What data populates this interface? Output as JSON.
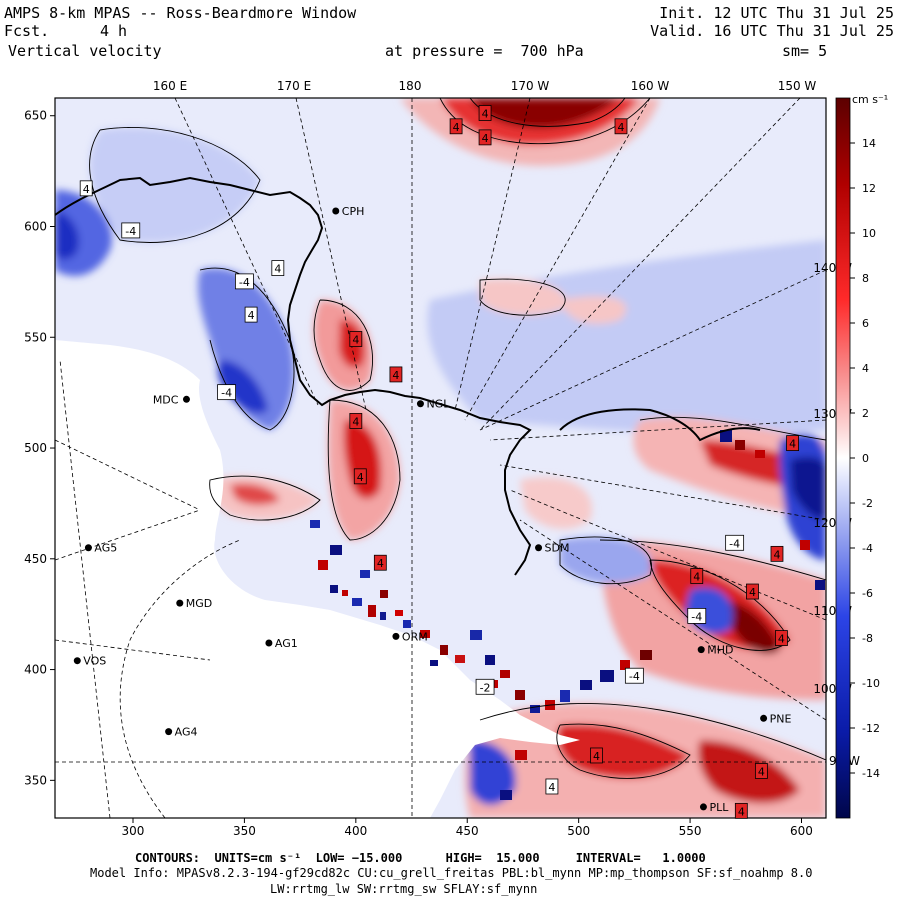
{
  "header": {
    "title": "AMPS 8-km MPAS -- Ross-Beardmore Window",
    "fcst_label": "Fcst.",
    "fcst_value": "4 h",
    "variable": "Vertical velocity",
    "init": "Init. 12 UTC Thu 31 Jul 25",
    "valid": "Valid. 16 UTC Thu 31 Jul 25",
    "pressure": "at pressure =  700 hPa",
    "smoothing": "sm= 5"
  },
  "map": {
    "x_ticks": [
      300,
      350,
      400,
      450,
      500,
      550,
      600
    ],
    "y_ticks": [
      350,
      400,
      450,
      500,
      550,
      600,
      650
    ],
    "x_range": [
      265,
      611
    ],
    "y_range": [
      333,
      658
    ],
    "longitude_labels_top": [
      "160 E",
      "170 E",
      "180",
      "170 W",
      "160 W",
      "150 W"
    ],
    "longitude_labels_right": [
      "140 W",
      "130 W",
      "120 W",
      "110 W",
      "100 W",
      "90 W"
    ],
    "stations": [
      {
        "name": "CPH",
        "x": 391,
        "y": 607
      },
      {
        "name": "NGL",
        "x": 429,
        "y": 520
      },
      {
        "name": "MDC",
        "x": 324,
        "y": 522
      },
      {
        "name": "AG5",
        "x": 280,
        "y": 455
      },
      {
        "name": "MGD",
        "x": 321,
        "y": 430
      },
      {
        "name": "AG1",
        "x": 361,
        "y": 412
      },
      {
        "name": "VOS",
        "x": 275,
        "y": 404
      },
      {
        "name": "AG4",
        "x": 316,
        "y": 372
      },
      {
        "name": "SDM",
        "x": 482,
        "y": 455
      },
      {
        "name": "ORM",
        "x": 418,
        "y": 415
      },
      {
        "name": "PNE",
        "x": 583,
        "y": 378
      },
      {
        "name": "PLL",
        "x": 556,
        "y": 338
      },
      {
        "name": "MHD",
        "x": 555,
        "y": 409
      }
    ],
    "extremum_labels": [
      {
        "t": "4",
        "x": 458,
        "y": 651,
        "sign": "pos"
      },
      {
        "t": "4",
        "x": 445,
        "y": 645,
        "sign": "pos"
      },
      {
        "t": "4",
        "x": 458,
        "y": 640,
        "sign": "pos"
      },
      {
        "t": "4",
        "x": 519,
        "y": 645,
        "sign": "pos"
      },
      {
        "t": "4",
        "x": 279,
        "y": 617,
        "sign": "neg"
      },
      {
        "t": "-4",
        "x": 299,
        "y": 598,
        "sign": "neg"
      },
      {
        "t": "-4",
        "x": 350,
        "y": 575,
        "sign": "neg"
      },
      {
        "t": "4",
        "x": 353,
        "y": 560,
        "sign": "neg"
      },
      {
        "t": "4",
        "x": 365,
        "y": 581,
        "sign": "neg"
      },
      {
        "t": "4",
        "x": 400,
        "y": 549,
        "sign": "pos"
      },
      {
        "t": "4",
        "x": 418,
        "y": 533,
        "sign": "pos"
      },
      {
        "t": "-4",
        "x": 342,
        "y": 525,
        "sign": "neg"
      },
      {
        "t": "4",
        "x": 400,
        "y": 512,
        "sign": "pos"
      },
      {
        "t": "4",
        "x": 402,
        "y": 487,
        "sign": "pos"
      },
      {
        "t": "4",
        "x": 596,
        "y": 502,
        "sign": "pos"
      },
      {
        "t": "-4",
        "x": 570,
        "y": 457,
        "sign": "neg"
      },
      {
        "t": "4",
        "x": 589,
        "y": 452,
        "sign": "pos"
      },
      {
        "t": "4",
        "x": 553,
        "y": 442,
        "sign": "pos"
      },
      {
        "t": "4",
        "x": 578,
        "y": 435,
        "sign": "pos"
      },
      {
        "t": "4",
        "x": 591,
        "y": 414,
        "sign": "pos"
      },
      {
        "t": "-4",
        "x": 525,
        "y": 397,
        "sign": "neg"
      },
      {
        "t": "4",
        "x": 508,
        "y": 361,
        "sign": "pos"
      },
      {
        "t": "4",
        "x": 488,
        "y": 347,
        "sign": "neg"
      },
      {
        "t": "4",
        "x": 582,
        "y": 354,
        "sign": "pos"
      },
      {
        "t": "4",
        "x": 573,
        "y": 336,
        "sign": "pos"
      },
      {
        "t": "-2",
        "x": 458,
        "y": 392,
        "sign": "neg"
      },
      {
        "t": "4",
        "x": 411,
        "y": 448,
        "sign": "pos"
      },
      {
        "t": "-4",
        "x": 553,
        "y": 424,
        "sign": "neg"
      }
    ]
  },
  "colorbar": {
    "units": "cm s⁻¹",
    "min": -16,
    "max": 16,
    "levels": [
      14,
      12,
      10,
      8,
      6,
      4,
      2,
      0,
      -2,
      -4,
      -6,
      -8,
      -10,
      -12,
      -14
    ],
    "colors": {
      "max_red": "#6e0000",
      "red": "#e00000",
      "light_red": "#f4a0a0",
      "pale_red": "#fbe0e0",
      "white": "#ffffff",
      "pale_blue": "#dde3fb",
      "light_blue": "#a9b5f2",
      "blue": "#2a3fd6",
      "max_blue": "#0a1170"
    }
  },
  "footer": {
    "contours": "CONTOURS:  UNITS=cm s⁻¹  LOW= −15.000      HIGH=  15.000     INTERVAL=   1.0000",
    "model_info": "Model Info: MPASv8.2.3-194-gf29cd82c CU:cu_grell_freitas PBL:bl_mynn MP:mp_thompson SF:sf_noahmp 8.0",
    "physics": "LW:rrtmg_lw SW:rrtmg_sw SFLAY:sf_mynn"
  }
}
